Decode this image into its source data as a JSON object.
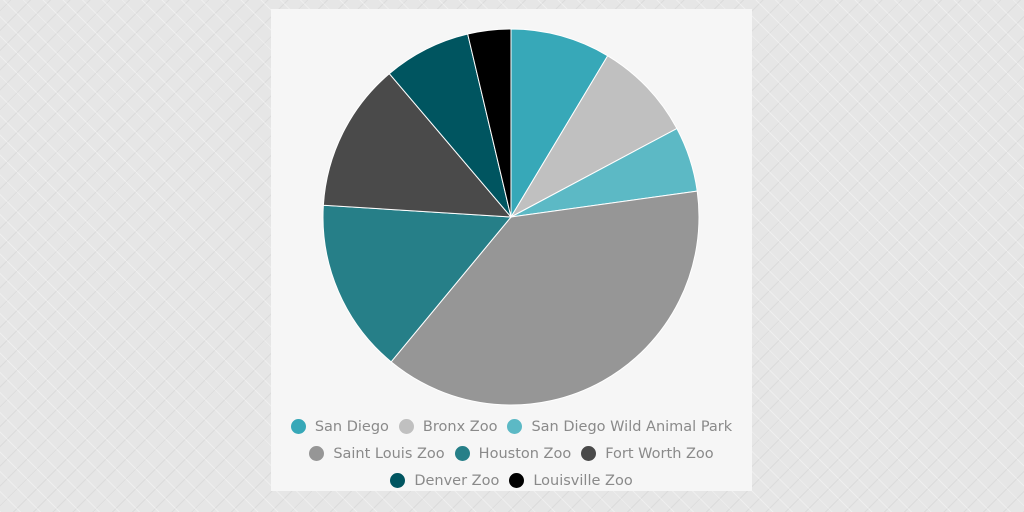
{
  "chart_data": {
    "type": "pie",
    "title": "",
    "categories": [
      "San Diego",
      "Bronx Zoo",
      "San Diego Wild Animal Park",
      "Saint Louis Zoo",
      "Houston Zoo",
      "Fort Worth Zoo",
      "Denver Zoo",
      "Louisville Zoo"
    ],
    "values": [
      8.6,
      8.6,
      5.6,
      38.2,
      15.0,
      12.8,
      7.5,
      3.7
    ],
    "units": "percent (estimated from slice angles)",
    "colors": [
      "#37a8b8",
      "#c0c0c0",
      "#5cb9c5",
      "#969696",
      "#267f88",
      "#4a4a4a",
      "#005560",
      "#000000"
    ],
    "legend_position": "bottom",
    "start_angle": "12 o'clock, clockwise"
  },
  "legend": {
    "rows": [
      [
        0,
        1,
        2
      ],
      [
        3,
        4,
        5
      ],
      [
        6,
        7
      ]
    ],
    "items": [
      {
        "label": "San Diego",
        "color": "#37a8b8"
      },
      {
        "label": "Bronx Zoo",
        "color": "#c0c0c0"
      },
      {
        "label": "San Diego Wild Animal Park",
        "color": "#5cb9c5"
      },
      {
        "label": "Saint Louis Zoo",
        "color": "#969696"
      },
      {
        "label": "Houston Zoo",
        "color": "#267f88"
      },
      {
        "label": "Fort Worth Zoo",
        "color": "#4a4a4a"
      },
      {
        "label": "Denver Zoo",
        "color": "#005560"
      },
      {
        "label": "Louisville Zoo",
        "color": "#000000"
      }
    ]
  }
}
